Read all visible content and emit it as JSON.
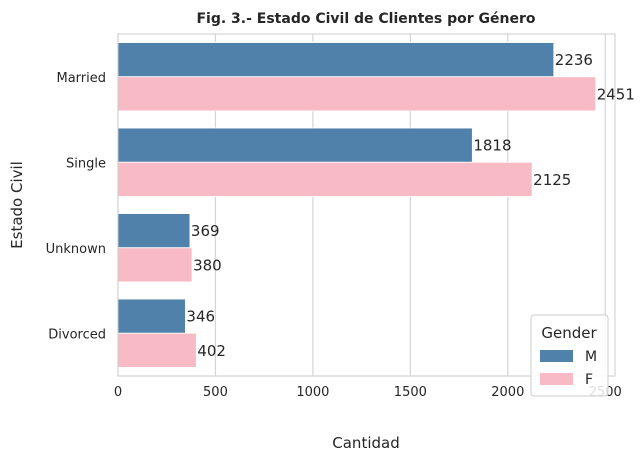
{
  "chart_data": {
    "type": "bar",
    "orientation": "horizontal",
    "title": "Fig. 3.- Estado Civil de Clientes por Género",
    "xlabel": "Cantidad",
    "ylabel": "Estado Civil",
    "categories": [
      "Married",
      "Single",
      "Unknown",
      "Divorced"
    ],
    "xlim": [
      0,
      2550
    ],
    "xticks": [
      0,
      500,
      1000,
      1500,
      2000,
      2500
    ],
    "grid": true,
    "legend": {
      "title": "Gender",
      "placement": "lower-right"
    },
    "series": [
      {
        "name": "M",
        "color": "#4f81aa",
        "values": [
          2236,
          1818,
          369,
          346
        ]
      },
      {
        "name": "F",
        "color": "#f8bbc6",
        "values": [
          2451,
          2125,
          380,
          402
        ]
      }
    ]
  }
}
